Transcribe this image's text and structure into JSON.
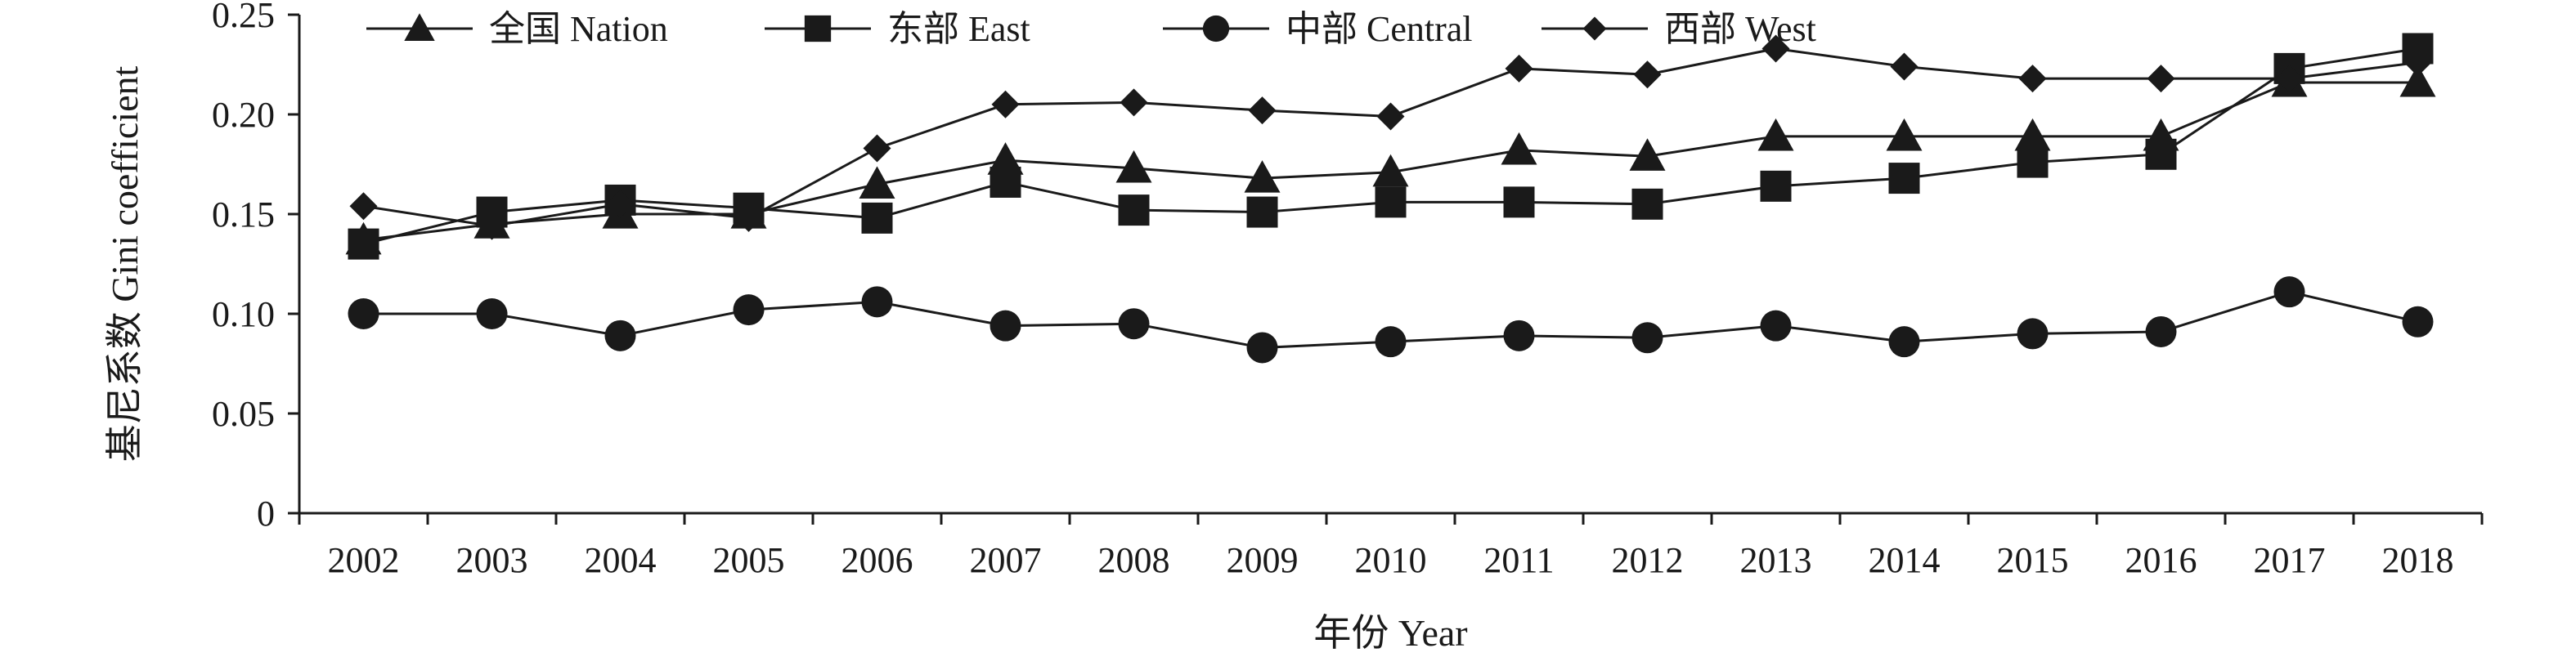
{
  "chart_data": {
    "type": "line",
    "xlabel": "年份 Year",
    "ylabel": "基尼系数 Gini coefficient",
    "categories": [
      "2002",
      "2003",
      "2004",
      "2005",
      "2006",
      "2007",
      "2008",
      "2009",
      "2010",
      "2011",
      "2012",
      "2013",
      "2014",
      "2015",
      "2016",
      "2017",
      "2018"
    ],
    "ylim": [
      0,
      0.25
    ],
    "yticks": [
      0,
      0.05,
      0.1,
      0.15,
      0.2,
      0.25
    ],
    "ytick_labels": [
      "0",
      "0.05",
      "0.10",
      "0.15",
      "0.20",
      "0.25"
    ],
    "grid": false,
    "legend_position": "top",
    "series": [
      {
        "name": "全国 Nation",
        "marker": "triangle",
        "color": "#1a1a1a",
        "values": [
          0.137,
          0.145,
          0.15,
          0.15,
          0.165,
          0.177,
          0.173,
          0.168,
          0.171,
          0.182,
          0.179,
          0.189,
          0.189,
          0.189,
          0.189,
          0.216,
          0.216
        ]
      },
      {
        "name": "东部 East",
        "marker": "square",
        "color": "#1a1a1a",
        "values": [
          0.135,
          0.151,
          0.157,
          0.153,
          0.148,
          0.166,
          0.152,
          0.151,
          0.156,
          0.156,
          0.155,
          0.164,
          0.168,
          0.176,
          0.18,
          0.223,
          0.233
        ]
      },
      {
        "name": "中部 Central",
        "marker": "circle",
        "color": "#1a1a1a",
        "values": [
          0.1,
          0.1,
          0.089,
          0.102,
          0.106,
          0.094,
          0.095,
          0.083,
          0.086,
          0.089,
          0.088,
          0.094,
          0.086,
          0.09,
          0.091,
          0.111,
          0.096
        ]
      },
      {
        "name": "西部 West",
        "marker": "diamond",
        "color": "#1a1a1a",
        "values": [
          0.154,
          0.144,
          0.155,
          0.148,
          0.183,
          0.205,
          0.206,
          0.202,
          0.199,
          0.223,
          0.22,
          0.233,
          0.224,
          0.218,
          0.218,
          0.218,
          0.226
        ]
      }
    ]
  }
}
